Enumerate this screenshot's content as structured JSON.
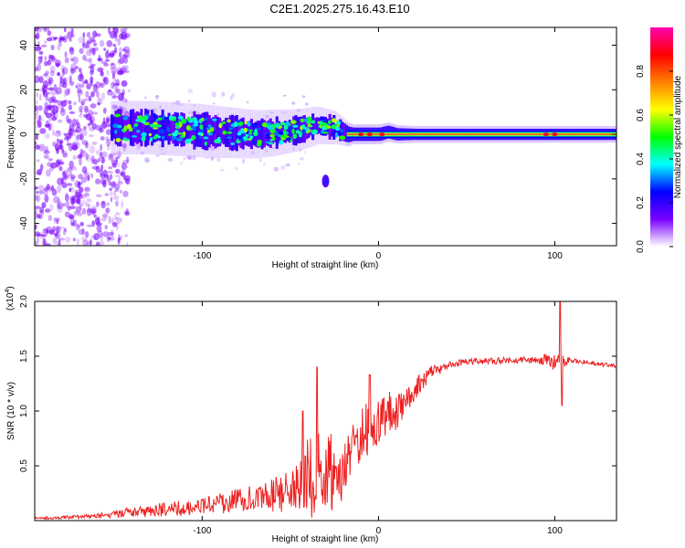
{
  "figure": {
    "title": "C2E1.2025.275.16.43.E10"
  },
  "chart_data": [
    {
      "type": "heatmap",
      "name": "spectrogram",
      "xlabel": "Height of straight line (km)",
      "ylabel": "Frequency (Hz)",
      "xlim": [
        -195,
        135
      ],
      "ylim": [
        -50,
        48
      ],
      "x_ticks": [
        -100,
        0,
        100
      ],
      "x_tick_labels": [
        "-100",
        "0",
        "100"
      ],
      "y_ticks": [
        -40,
        -20,
        0,
        20,
        40
      ],
      "y_tick_labels": [
        "-40",
        "-20",
        "0",
        "20",
        "40"
      ],
      "colorbar": {
        "label": "Normalized spectral amplitude",
        "range": [
          0,
          1
        ],
        "ticks": [
          0.0,
          0.2,
          0.4,
          0.6,
          0.8
        ],
        "tick_labels": [
          "0.0",
          "0.2",
          "0.4",
          "0.6",
          "0.8"
        ],
        "colormap": [
          "#ffffff",
          "#7a00ff",
          "#0000ff",
          "#00ffff",
          "#00ff00",
          "#ffff00",
          "#ff8000",
          "#ff0000",
          "#ff00b0"
        ]
      },
      "features": {
        "noise_region_x": [
          -195,
          -150
        ],
        "band_center_hz": [
          [
            -150,
            3
          ],
          [
            -130,
            3
          ],
          [
            -110,
            2
          ],
          [
            -90,
            1
          ],
          [
            -70,
            0
          ],
          [
            -55,
            1
          ],
          [
            -45,
            2
          ],
          [
            -35,
            4
          ],
          [
            -25,
            3
          ],
          [
            -18,
            0
          ],
          [
            -10,
            0
          ],
          [
            0,
            0
          ],
          [
            5,
            1
          ],
          [
            10,
            0
          ],
          [
            30,
            0
          ],
          [
            60,
            0
          ],
          [
            100,
            0
          ],
          [
            135,
            0
          ]
        ],
        "band_halfwidth_hz": [
          [
            -150,
            8
          ],
          [
            -100,
            8
          ],
          [
            -60,
            7
          ],
          [
            -40,
            6
          ],
          [
            -25,
            5
          ],
          [
            -15,
            3
          ],
          [
            0,
            3
          ],
          [
            20,
            2.5
          ],
          [
            135,
            2.5
          ]
        ],
        "blob": {
          "x": -30,
          "y": -21
        }
      }
    },
    {
      "type": "line",
      "name": "snr",
      "xlabel": "Height of straight line (km)",
      "ylabel": "SNR (10 * v/v)",
      "scale_label": "(x10",
      "scale_exponent": "4",
      "xlim": [
        -195,
        135
      ],
      "ylim": [
        0,
        2.0
      ],
      "x_ticks": [
        -100,
        0,
        100
      ],
      "x_tick_labels": [
        "-100",
        "0",
        "100"
      ],
      "y_ticks": [
        0.5,
        1.0,
        1.5,
        2.0
      ],
      "y_tick_labels": [
        "0.5",
        "1.0",
        "1.5",
        "2.0"
      ],
      "series": [
        {
          "name": "SNR",
          "color": "#ee2020",
          "baseline": [
            [
              -195,
              0.02
            ],
            [
              -160,
              0.04
            ],
            [
              -140,
              0.08
            ],
            [
              -120,
              0.1
            ],
            [
              -100,
              0.13
            ],
            [
              -80,
              0.18
            ],
            [
              -65,
              0.22
            ],
            [
              -55,
              0.25
            ],
            [
              -45,
              0.35
            ],
            [
              -35,
              0.45
            ],
            [
              -28,
              0.45
            ],
            [
              -22,
              0.4
            ],
            [
              -18,
              0.5
            ],
            [
              -10,
              0.8
            ],
            [
              0,
              0.9
            ],
            [
              10,
              1.0
            ],
            [
              20,
              1.2
            ],
            [
              30,
              1.35
            ],
            [
              40,
              1.42
            ],
            [
              50,
              1.45
            ],
            [
              70,
              1.46
            ],
            [
              90,
              1.47
            ],
            [
              100,
              1.46
            ],
            [
              110,
              1.46
            ],
            [
              120,
              1.44
            ],
            [
              135,
              1.41
            ]
          ],
          "noise_amplitude": [
            [
              -195,
              0.01
            ],
            [
              -160,
              0.02
            ],
            [
              -140,
              0.05
            ],
            [
              -100,
              0.08
            ],
            [
              -70,
              0.12
            ],
            [
              -50,
              0.2
            ],
            [
              -40,
              0.4
            ],
            [
              -30,
              0.4
            ],
            [
              -20,
              0.25
            ],
            [
              -5,
              0.25
            ],
            [
              10,
              0.2
            ],
            [
              25,
              0.08
            ],
            [
              40,
              0.03
            ],
            [
              90,
              0.03
            ],
            [
              100,
              0.1
            ],
            [
              110,
              0.02
            ],
            [
              135,
              0.02
            ]
          ],
          "spikes": [
            {
              "x": -35,
              "y": 1.4
            },
            {
              "x": -43,
              "y": 1.0
            },
            {
              "x": -5,
              "y": 1.33
            },
            {
              "x": 103,
              "y": 2.0
            },
            {
              "x": 104,
              "y": 1.05
            }
          ]
        }
      ]
    }
  ]
}
